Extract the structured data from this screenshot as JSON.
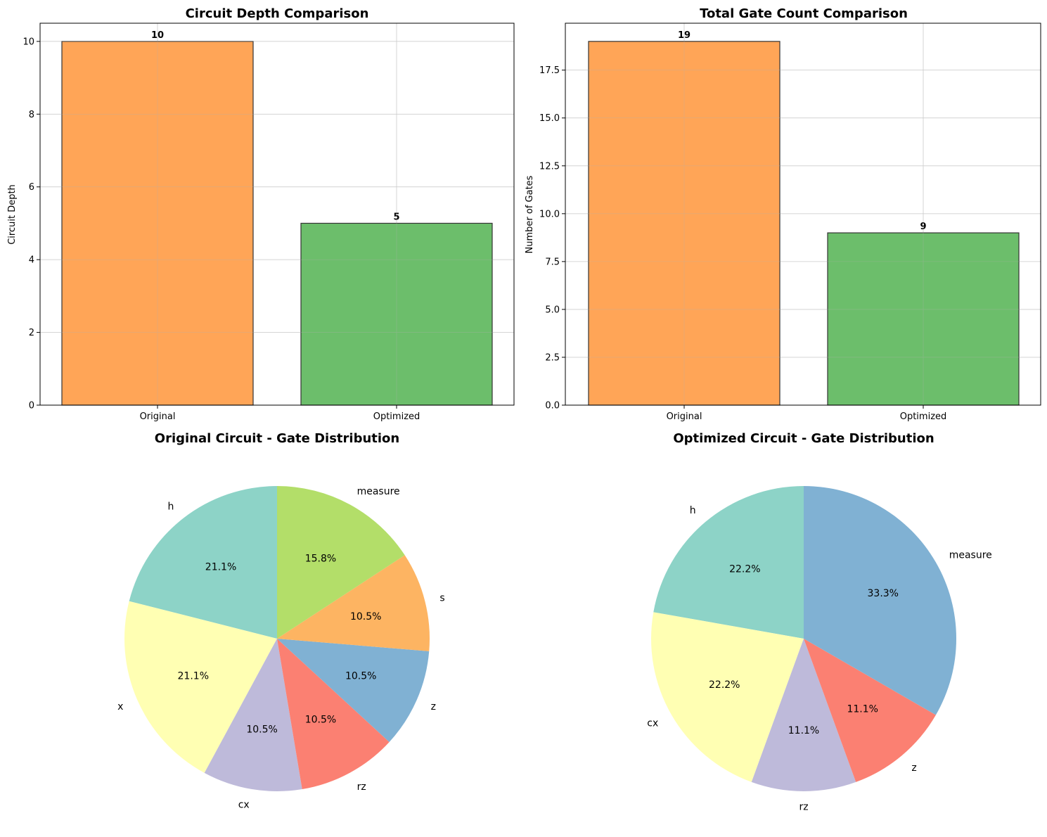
{
  "colors": {
    "bar_original": "#ffa557",
    "bar_optimized": "#6cbe6b",
    "bar_edge": "#333333",
    "grid": "#e3e3e3",
    "pie_palette": [
      "#8dd3c7",
      "#ffffb3",
      "#bebada",
      "#fb8072",
      "#80b1d3",
      "#fdb462",
      "#b3de69"
    ]
  },
  "chart_data": [
    {
      "id": "depth",
      "type": "bar",
      "title": "Circuit Depth Comparison",
      "categories": [
        "Original",
        "Optimized"
      ],
      "values": [
        10,
        5
      ],
      "value_labels": [
        "10",
        "5"
      ],
      "xlabel": "",
      "ylabel": "Circuit Depth",
      "ylim": [
        0,
        10.5
      ],
      "yticks": [
        0,
        2,
        4,
        6,
        8,
        10
      ],
      "ytick_labels": [
        "0",
        "2",
        "4",
        "6",
        "8",
        "10"
      ],
      "grid": true
    },
    {
      "id": "gates",
      "type": "bar",
      "title": "Total Gate Count Comparison",
      "categories": [
        "Original",
        "Optimized"
      ],
      "values": [
        19,
        9
      ],
      "value_labels": [
        "19",
        "9"
      ],
      "xlabel": "",
      "ylabel": "Number of Gates",
      "ylim": [
        0,
        19.95
      ],
      "yticks": [
        0,
        2.5,
        5,
        7.5,
        10,
        12.5,
        15,
        17.5
      ],
      "ytick_labels": [
        "0.0",
        "2.5",
        "5.0",
        "7.5",
        "10.0",
        "12.5",
        "15.0",
        "17.5"
      ],
      "grid": true
    },
    {
      "id": "orig-pie",
      "type": "pie",
      "title": "Original Circuit - Gate Distribution",
      "labels": [
        "h",
        "x",
        "cx",
        "rz",
        "z",
        "s",
        "measure"
      ],
      "values": [
        4,
        4,
        2,
        2,
        2,
        2,
        3
      ],
      "percent_labels": [
        "21.1%",
        "21.1%",
        "10.5%",
        "10.5%",
        "10.5%",
        "10.5%",
        "15.8%"
      ],
      "color_index": [
        0,
        1,
        2,
        3,
        4,
        5,
        6
      ],
      "start_angle": 90,
      "direction": "counterclockwise"
    },
    {
      "id": "opt-pie",
      "type": "pie",
      "title": "Optimized Circuit - Gate Distribution",
      "labels": [
        "h",
        "cx",
        "rz",
        "z",
        "measure"
      ],
      "values": [
        2,
        2,
        1,
        1,
        3
      ],
      "percent_labels": [
        "22.2%",
        "22.2%",
        "11.1%",
        "11.1%",
        "33.3%"
      ],
      "color_index": [
        0,
        1,
        2,
        3,
        4
      ],
      "start_angle": 90,
      "direction": "counterclockwise"
    }
  ]
}
